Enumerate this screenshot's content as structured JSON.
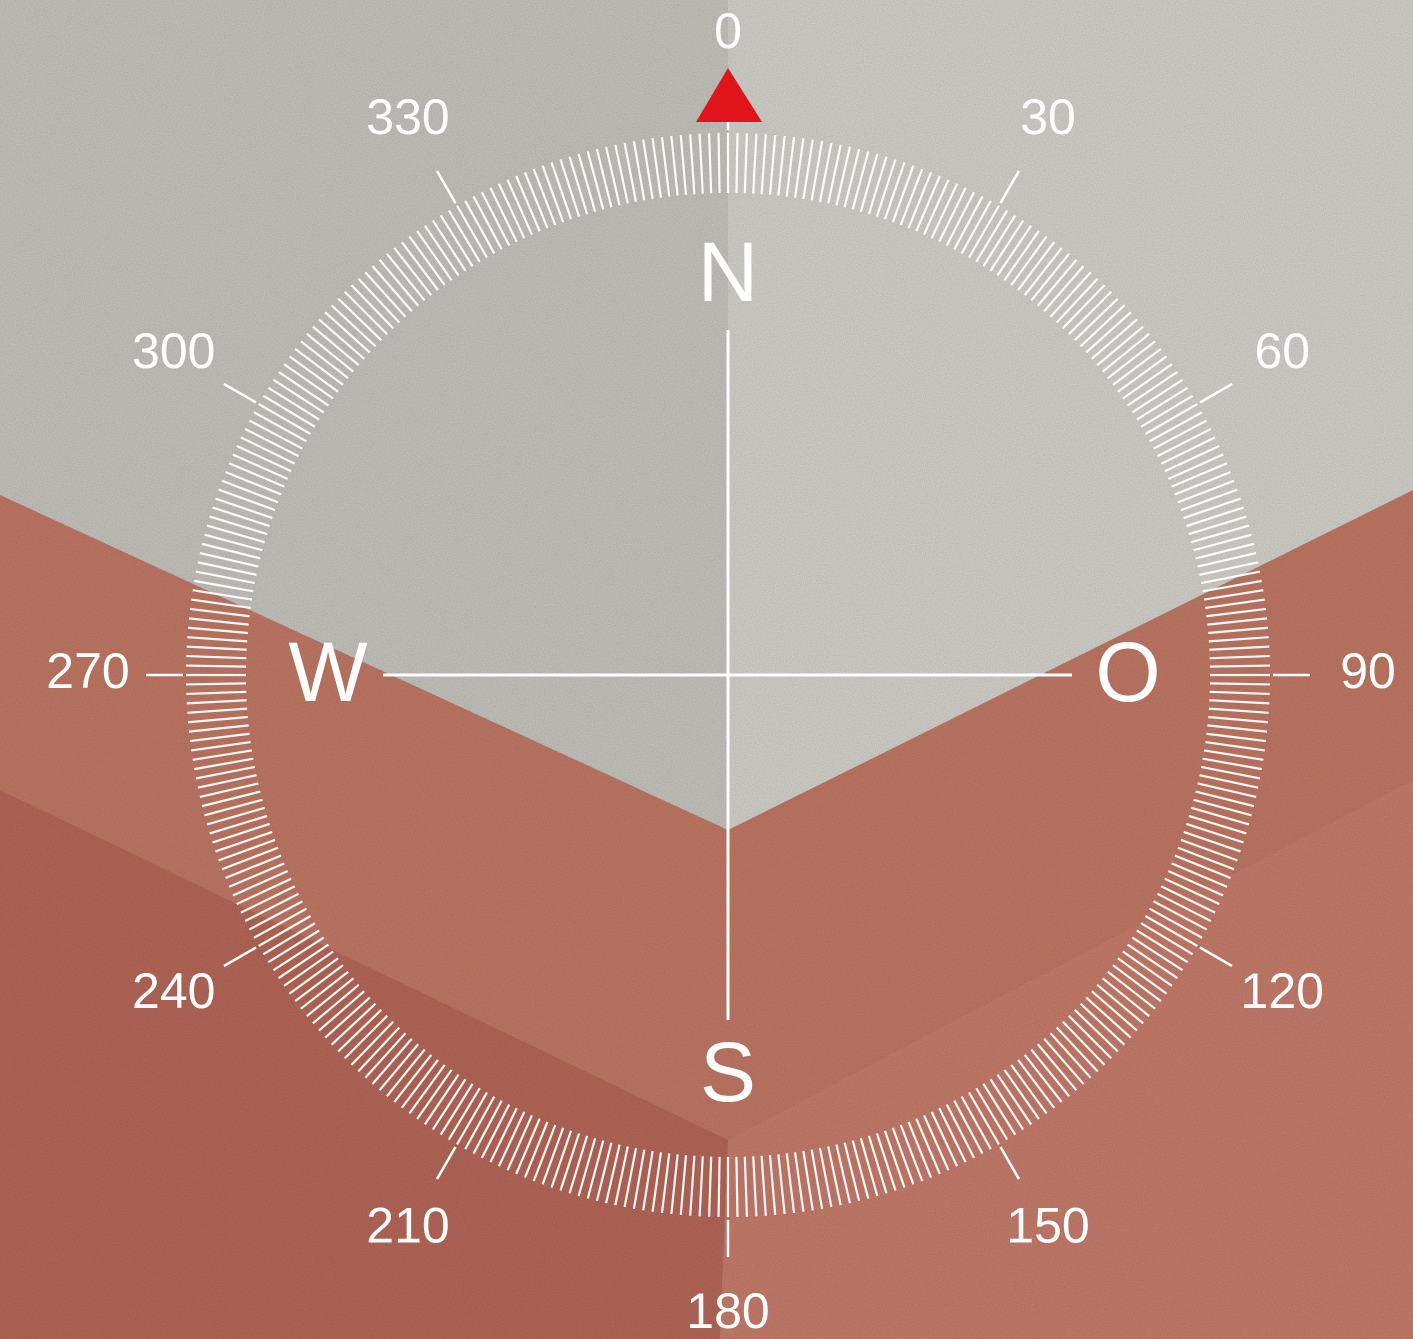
{
  "compass": {
    "degree_labels": [
      0,
      30,
      60,
      90,
      120,
      150,
      180,
      210,
      240,
      270,
      300,
      330
    ],
    "cardinals": [
      "N",
      "O",
      "S",
      "W"
    ]
  }
}
